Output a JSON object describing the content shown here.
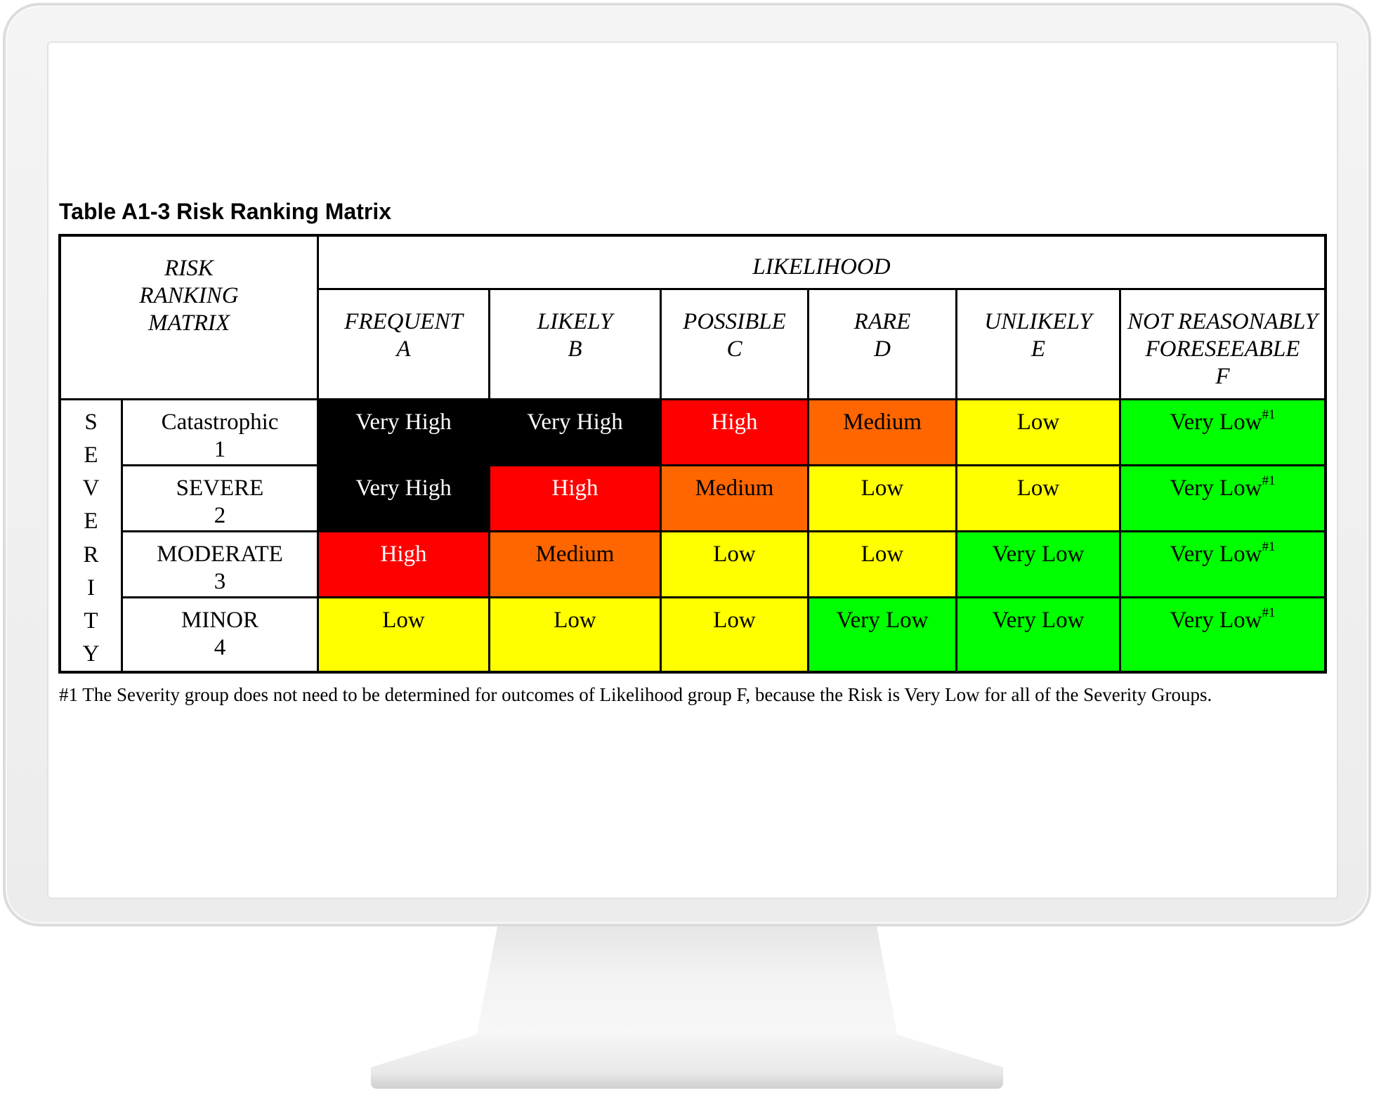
{
  "caption": "Table A1-3  Risk Ranking Matrix",
  "matrix": {
    "corner_lines": [
      "RISK",
      "RANKING",
      "MATRIX"
    ],
    "likelihood_title": "LIKELIHOOD",
    "likelihood_columns": [
      {
        "name": "FREQUENT",
        "code": "A"
      },
      {
        "name": "LIKELY",
        "code": "B"
      },
      {
        "name": "POSSIBLE",
        "code": "C"
      },
      {
        "name": "RARE",
        "code": "D"
      },
      {
        "name": "UNLIKELY",
        "code": "E"
      },
      {
        "name": "NOT REASONABLY",
        "name2": "FORESEEABLE",
        "code": "F"
      }
    ],
    "severity_letters": [
      "S",
      "E",
      "V",
      "E",
      "R",
      "I",
      "T",
      "Y"
    ],
    "severity_rows": [
      {
        "name": "Catastrophic",
        "code": "1"
      },
      {
        "name": "SEVERE",
        "code": "2"
      },
      {
        "name": "MODERATE",
        "code": "3"
      },
      {
        "name": "MINOR",
        "code": "4"
      }
    ],
    "cells": [
      [
        "Very High",
        "Very High",
        "High",
        "Medium",
        "Low",
        "Very Low"
      ],
      [
        "Very High",
        "High",
        "Medium",
        "Low",
        "Low",
        "Very Low"
      ],
      [
        "High",
        "Medium",
        "Low",
        "Low",
        "Very Low",
        "Very Low"
      ],
      [
        "Low",
        "Low",
        "Low",
        "Very Low",
        "Very Low",
        "Very Low"
      ]
    ],
    "footnote_marker": "#1",
    "risk_colors": {
      "Very High": {
        "bg": "#000000",
        "fg": "#ffffff"
      },
      "High": {
        "bg": "#ff0000",
        "fg": "#ffffff"
      },
      "Medium": {
        "bg": "#ff6600",
        "fg": "#000000"
      },
      "Low": {
        "bg": "#ffff00",
        "fg": "#000000"
      },
      "Very Low": {
        "bg": "#00ff00",
        "fg": "#000000"
      }
    }
  },
  "footnote": "#1 The Severity group does not need to be determined for outcomes of Likelihood group F, because the Risk is Very Low for all of the Severity Groups."
}
